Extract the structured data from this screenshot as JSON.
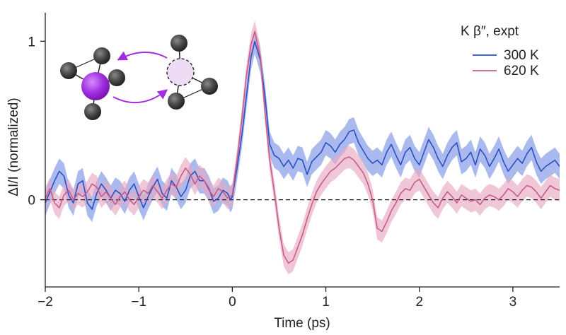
{
  "chart_data": {
    "type": "line",
    "xlabel": "Time (ps)",
    "ylabel": "ΔI/I (normalized)",
    "xlim": [
      -2,
      3.5
    ],
    "ylim": [
      -0.55,
      1.18
    ],
    "xticks": [
      -2,
      -1,
      0,
      1,
      2,
      3
    ],
    "yticks": [
      0,
      1
    ],
    "xtick_labels": [
      "−2",
      "−1",
      "0",
      "1",
      "2",
      "3"
    ],
    "ytick_labels": [
      "0",
      "1"
    ],
    "reference_line": {
      "y": 0,
      "style": "dashed"
    },
    "legend": {
      "title": "K β″, expt",
      "placement": "top-right"
    },
    "series": [
      {
        "name": "300 K",
        "color": "#2b4fc4",
        "band_color": "#7d95e6",
        "band_halfwidth": 0.08,
        "points": [
          [
            -2.0,
            -0.02
          ],
          [
            -1.95,
            0.05
          ],
          [
            -1.9,
            0.12
          ],
          [
            -1.85,
            0.18
          ],
          [
            -1.8,
            0.15
          ],
          [
            -1.75,
            0.03
          ],
          [
            -1.7,
            -0.02
          ],
          [
            -1.65,
            0.1
          ],
          [
            -1.6,
            0.12
          ],
          [
            -1.55,
            -0.02
          ],
          [
            -1.5,
            -0.06
          ],
          [
            -1.45,
            0.04
          ],
          [
            -1.4,
            0.1
          ],
          [
            -1.35,
            0.06
          ],
          [
            -1.3,
            0.01
          ],
          [
            -1.25,
            0.06
          ],
          [
            -1.2,
            0.04
          ],
          [
            -1.15,
            -0.01
          ],
          [
            -1.1,
            0.06
          ],
          [
            -1.05,
            0.1
          ],
          [
            -1.0,
            0.02
          ],
          [
            -0.95,
            -0.05
          ],
          [
            -0.9,
            0.02
          ],
          [
            -0.85,
            0.08
          ],
          [
            -0.8,
            0.13
          ],
          [
            -0.75,
            0.04
          ],
          [
            -0.7,
            0.01
          ],
          [
            -0.65,
            0.12
          ],
          [
            -0.6,
            0.08
          ],
          [
            -0.55,
            0.02
          ],
          [
            -0.5,
            0.06
          ],
          [
            -0.45,
            0.15
          ],
          [
            -0.4,
            0.18
          ],
          [
            -0.35,
            0.12
          ],
          [
            -0.3,
            0.12
          ],
          [
            -0.25,
            0.07
          ],
          [
            -0.2,
            -0.01
          ],
          [
            -0.15,
            0.01
          ],
          [
            -0.1,
            0.06
          ],
          [
            -0.05,
            0.04
          ],
          [
            -0.02,
            0.0
          ],
          [
            0.0,
            0.02
          ],
          [
            0.05,
            0.2
          ],
          [
            0.1,
            0.4
          ],
          [
            0.15,
            0.65
          ],
          [
            0.2,
            0.9
          ],
          [
            0.24,
            1.0
          ],
          [
            0.3,
            0.88
          ],
          [
            0.35,
            0.65
          ],
          [
            0.4,
            0.35
          ],
          [
            0.45,
            0.28
          ],
          [
            0.5,
            0.26
          ],
          [
            0.55,
            0.21
          ],
          [
            0.6,
            0.25
          ],
          [
            0.65,
            0.2
          ],
          [
            0.7,
            0.26
          ],
          [
            0.75,
            0.25
          ],
          [
            0.8,
            0.16
          ],
          [
            0.85,
            0.24
          ],
          [
            0.9,
            0.27
          ],
          [
            0.95,
            0.3
          ],
          [
            1.0,
            0.36
          ],
          [
            1.05,
            0.34
          ],
          [
            1.1,
            0.3
          ],
          [
            1.15,
            0.35
          ],
          [
            1.2,
            0.38
          ],
          [
            1.25,
            0.43
          ],
          [
            1.3,
            0.44
          ],
          [
            1.35,
            0.36
          ],
          [
            1.4,
            0.31
          ],
          [
            1.45,
            0.26
          ],
          [
            1.5,
            0.23
          ],
          [
            1.55,
            0.25
          ],
          [
            1.6,
            0.22
          ],
          [
            1.65,
            0.3
          ],
          [
            1.7,
            0.35
          ],
          [
            1.75,
            0.28
          ],
          [
            1.8,
            0.22
          ],
          [
            1.85,
            0.3
          ],
          [
            1.9,
            0.33
          ],
          [
            1.95,
            0.26
          ],
          [
            2.0,
            0.22
          ],
          [
            2.05,
            0.3
          ],
          [
            2.1,
            0.38
          ],
          [
            2.15,
            0.33
          ],
          [
            2.2,
            0.26
          ],
          [
            2.25,
            0.21
          ],
          [
            2.3,
            0.28
          ],
          [
            2.35,
            0.33
          ],
          [
            2.4,
            0.36
          ],
          [
            2.45,
            0.24
          ],
          [
            2.5,
            0.26
          ],
          [
            2.55,
            0.3
          ],
          [
            2.6,
            0.22
          ],
          [
            2.65,
            0.32
          ],
          [
            2.7,
            0.28
          ],
          [
            2.75,
            0.21
          ],
          [
            2.8,
            0.26
          ],
          [
            2.85,
            0.32
          ],
          [
            2.9,
            0.24
          ],
          [
            2.95,
            0.18
          ],
          [
            3.0,
            0.22
          ],
          [
            3.05,
            0.26
          ],
          [
            3.1,
            0.23
          ],
          [
            3.15,
            0.29
          ],
          [
            3.2,
            0.33
          ],
          [
            3.25,
            0.24
          ],
          [
            3.3,
            0.18
          ],
          [
            3.35,
            0.21
          ],
          [
            3.4,
            0.23
          ],
          [
            3.45,
            0.25
          ],
          [
            3.5,
            0.21
          ]
        ]
      },
      {
        "name": "620 K",
        "color": "#c85b8c",
        "band_color": "#e6a9c1",
        "band_halfwidth": 0.07,
        "points": [
          [
            -2.0,
            0.01
          ],
          [
            -1.95,
            0.07
          ],
          [
            -1.9,
            -0.02
          ],
          [
            -1.85,
            -0.05
          ],
          [
            -1.8,
            0.03
          ],
          [
            -1.75,
            0.06
          ],
          [
            -1.7,
            0.0
          ],
          [
            -1.65,
            0.04
          ],
          [
            -1.6,
            0.02
          ],
          [
            -1.55,
            0.05
          ],
          [
            -1.5,
            0.1
          ],
          [
            -1.45,
            0.08
          ],
          [
            -1.4,
            0.02
          ],
          [
            -1.35,
            0.05
          ],
          [
            -1.3,
            0.01
          ],
          [
            -1.25,
            -0.03
          ],
          [
            -1.2,
            0.02
          ],
          [
            -1.15,
            0.05
          ],
          [
            -1.1,
            0.0
          ],
          [
            -1.05,
            -0.03
          ],
          [
            -1.0,
            0.02
          ],
          [
            -0.95,
            0.06
          ],
          [
            -0.9,
            0.04
          ],
          [
            -0.85,
            0.09
          ],
          [
            -0.8,
            0.05
          ],
          [
            -0.75,
            0.01
          ],
          [
            -0.7,
            0.06
          ],
          [
            -0.65,
            0.1
          ],
          [
            -0.6,
            0.08
          ],
          [
            -0.55,
            0.15
          ],
          [
            -0.5,
            0.2
          ],
          [
            -0.45,
            0.16
          ],
          [
            -0.4,
            0.1
          ],
          [
            -0.35,
            0.15
          ],
          [
            -0.3,
            0.12
          ],
          [
            -0.25,
            0.06
          ],
          [
            -0.2,
            0.02
          ],
          [
            -0.15,
            0.07
          ],
          [
            -0.1,
            0.05
          ],
          [
            -0.05,
            0.01
          ],
          [
            0.0,
            0.03
          ],
          [
            0.05,
            0.25
          ],
          [
            0.1,
            0.5
          ],
          [
            0.15,
            0.78
          ],
          [
            0.2,
            0.98
          ],
          [
            0.24,
            1.06
          ],
          [
            0.3,
            0.9
          ],
          [
            0.35,
            0.55
          ],
          [
            0.4,
            0.25
          ],
          [
            0.45,
            0.05
          ],
          [
            0.5,
            -0.18
          ],
          [
            0.55,
            -0.35
          ],
          [
            0.6,
            -0.4
          ],
          [
            0.65,
            -0.38
          ],
          [
            0.7,
            -0.3
          ],
          [
            0.75,
            -0.22
          ],
          [
            0.8,
            -0.12
          ],
          [
            0.85,
            -0.03
          ],
          [
            0.9,
            0.05
          ],
          [
            0.95,
            0.1
          ],
          [
            1.0,
            0.14
          ],
          [
            1.05,
            0.18
          ],
          [
            1.1,
            0.2
          ],
          [
            1.15,
            0.23
          ],
          [
            1.2,
            0.26
          ],
          [
            1.25,
            0.27
          ],
          [
            1.3,
            0.25
          ],
          [
            1.35,
            0.21
          ],
          [
            1.4,
            0.17
          ],
          [
            1.45,
            0.1
          ],
          [
            1.5,
            0.0
          ],
          [
            1.55,
            -0.18
          ],
          [
            1.6,
            -0.2
          ],
          [
            1.65,
            -0.14
          ],
          [
            1.7,
            -0.07
          ],
          [
            1.75,
            -0.02
          ],
          [
            1.8,
            0.04
          ],
          [
            1.85,
            0.07
          ],
          [
            1.9,
            0.06
          ],
          [
            1.95,
            0.11
          ],
          [
            2.0,
            0.13
          ],
          [
            2.05,
            0.08
          ],
          [
            2.1,
            0.03
          ],
          [
            2.15,
            -0.02
          ],
          [
            2.2,
            -0.05
          ],
          [
            2.25,
            0.01
          ],
          [
            2.3,
            0.05
          ],
          [
            2.35,
            0.02
          ],
          [
            2.4,
            -0.02
          ],
          [
            2.45,
            0.03
          ],
          [
            2.5,
            0.01
          ],
          [
            2.55,
            -0.01
          ],
          [
            2.6,
            0.0
          ],
          [
            2.65,
            -0.03
          ],
          [
            2.7,
            0.01
          ],
          [
            2.75,
            0.03
          ],
          [
            2.8,
            0.02
          ],
          [
            2.85,
            0.0
          ],
          [
            2.9,
            0.03
          ],
          [
            2.95,
            0.07
          ],
          [
            3.0,
            0.05
          ],
          [
            3.05,
            0.02
          ],
          [
            3.1,
            0.06
          ],
          [
            3.15,
            0.09
          ],
          [
            3.2,
            0.08
          ],
          [
            3.25,
            0.05
          ],
          [
            3.3,
            0.01
          ],
          [
            3.35,
            0.05
          ],
          [
            3.4,
            0.09
          ],
          [
            3.45,
            0.07
          ],
          [
            3.5,
            0.06
          ]
        ]
      }
    ],
    "inset": {
      "description_icon": "atomic-hopping-diagram",
      "atom_dark": "#3d3d3d",
      "atom_moving": "#a12fe0",
      "atom_vacancy": "#eddcf4",
      "arrow_color": "#a12fe0"
    }
  }
}
